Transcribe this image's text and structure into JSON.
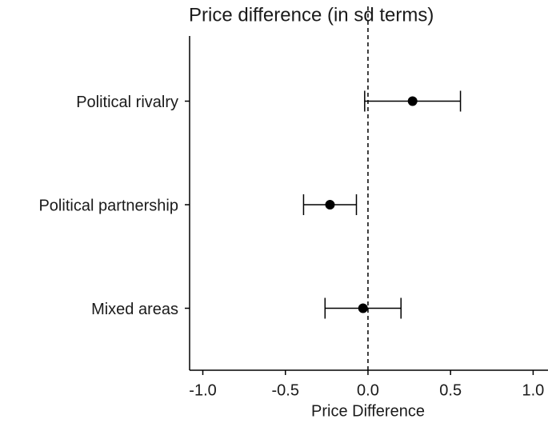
{
  "chart_data": {
    "type": "errorbar",
    "title": "Price difference (in sd terms)",
    "x_label": "Price Difference",
    "categories": [
      "Political rivalry",
      "Political partnership",
      "Mixed areas"
    ],
    "values": [
      0.27,
      -0.23,
      -0.03
    ],
    "errors": [
      0.29,
      0.16,
      0.23
    ],
    "color": "#000000",
    "reference_line": 0,
    "xlim": [
      -1.08,
      1.09
    ],
    "xticks": [
      {
        "value": -1,
        "label": "-1.0"
      },
      -0.5,
      {
        "value": 0,
        "label": "0.0"
      },
      0.5,
      {
        "value": 1,
        "label": "1.0"
      }
    ],
    "grid": false
  }
}
